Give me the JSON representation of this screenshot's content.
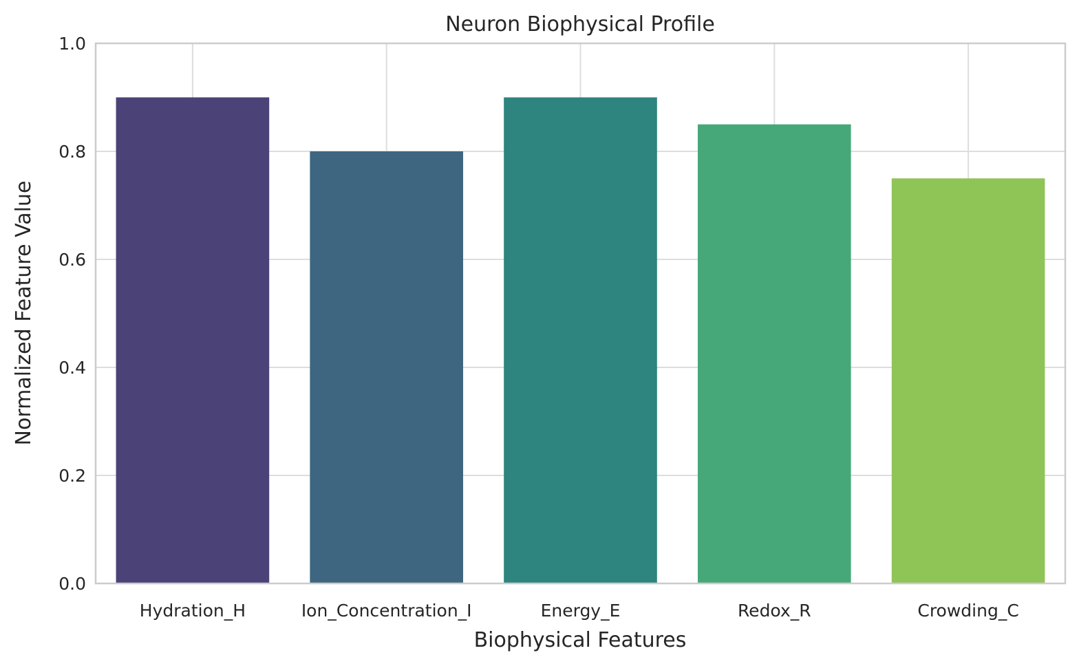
{
  "chart_data": {
    "type": "bar",
    "title": "Neuron Biophysical Profile",
    "xlabel": "Biophysical Features",
    "ylabel": "Normalized Feature Value",
    "categories": [
      "Hydration_H",
      "Ion_Concentration_I",
      "Energy_E",
      "Redox_R",
      "Crowding_C"
    ],
    "values": [
      0.9,
      0.8,
      0.9,
      0.85,
      0.75
    ],
    "colors": [
      "#4b4277",
      "#3e6680",
      "#2e847e",
      "#46a878",
      "#8fc457"
    ],
    "ylim": [
      0,
      1.0
    ],
    "yticks": [
      "0.0",
      "0.2",
      "0.4",
      "0.6",
      "0.8",
      "1.0"
    ],
    "grid": true,
    "legend": "none"
  }
}
